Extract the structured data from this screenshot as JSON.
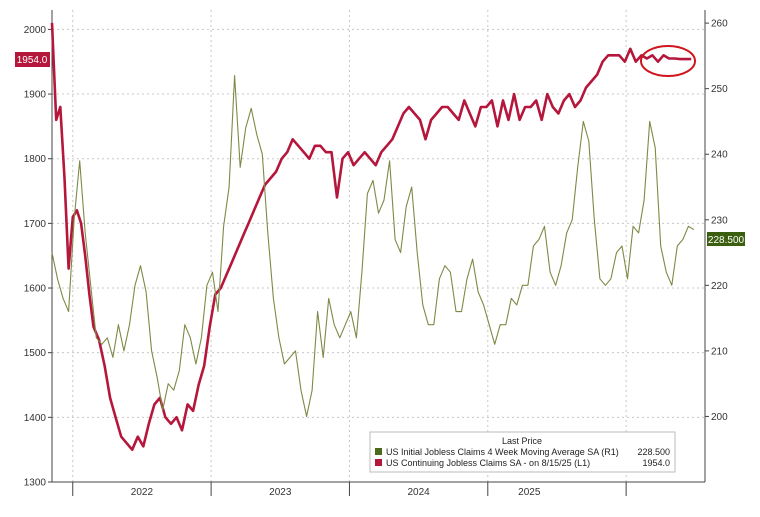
{
  "chart_data": {
    "type": "line",
    "x_labels": [
      "2022",
      "2023",
      "2024",
      "2025"
    ],
    "left_axis": {
      "ylim": [
        1300,
        2030
      ],
      "ticks": [
        1300,
        1400,
        1500,
        1600,
        1700,
        1800,
        1900,
        2000
      ]
    },
    "right_axis": {
      "ylim": [
        190,
        262
      ],
      "ticks": [
        200,
        210,
        220,
        230,
        240,
        250,
        260
      ]
    },
    "legend": {
      "title": "Last Price",
      "items": [
        {
          "label": "US Initial Jobless Claims 4 Week Moving Average SA  (R1)",
          "value": "228.500",
          "color": "#4a6a1a"
        },
        {
          "label": "US Continuing Jobless Claims SA -  on 8/15/25  (L1)",
          "value": "1954.0",
          "color": "#b5163b"
        }
      ]
    },
    "tags": {
      "left": "1954.0",
      "right": "228.500"
    },
    "series": [
      {
        "axis": "left",
        "color": "#b5163b",
        "x": [
          2021.0,
          2021.03,
          2021.06,
          2021.09,
          2021.12,
          2021.15,
          2021.18,
          2021.21,
          2021.24,
          2021.27,
          2021.3,
          2021.34,
          2021.38,
          2021.42,
          2021.46,
          2021.5,
          2021.54,
          2021.58,
          2021.62,
          2021.66,
          2021.7,
          2021.74,
          2021.78,
          2021.82,
          2021.86,
          2021.9,
          2021.94,
          2021.98,
          2022.02,
          2022.06,
          2022.1,
          2022.14,
          2022.18,
          2022.22,
          2022.26,
          2022.3,
          2022.34,
          2022.38,
          2022.42,
          2022.46,
          2022.5,
          2022.54,
          2022.58,
          2022.62,
          2022.66,
          2022.7,
          2022.74,
          2022.78,
          2022.82,
          2022.86,
          2022.9,
          2022.94,
          2022.98,
          2023.02,
          2023.06,
          2023.1,
          2023.14,
          2023.18,
          2023.22,
          2023.26,
          2023.3,
          2023.34,
          2023.38,
          2023.42,
          2023.46,
          2023.5,
          2023.54,
          2023.58,
          2023.62,
          2023.66,
          2023.7,
          2023.74,
          2023.78,
          2023.82,
          2023.86,
          2023.9,
          2023.94,
          2023.98,
          2024.02,
          2024.06,
          2024.1,
          2024.14,
          2024.18,
          2024.22,
          2024.26,
          2024.3,
          2024.34,
          2024.38,
          2024.42,
          2024.46,
          2024.5,
          2024.54,
          2024.58,
          2024.62,
          2024.66,
          2024.7,
          2024.74,
          2024.78,
          2024.82,
          2024.86,
          2024.9,
          2024.94,
          2024.98,
          2025.02,
          2025.06,
          2025.1,
          2025.14,
          2025.18,
          2025.22,
          2025.26,
          2025.3,
          2025.34,
          2025.38,
          2025.42,
          2025.46,
          2025.5,
          2025.54,
          2025.58,
          2025.62
        ],
        "values": [
          2010,
          1860,
          1880,
          1770,
          1630,
          1710,
          1720,
          1700,
          1650,
          1590,
          1540,
          1520,
          1480,
          1430,
          1400,
          1370,
          1360,
          1350,
          1370,
          1355,
          1390,
          1420,
          1430,
          1400,
          1390,
          1400,
          1380,
          1420,
          1410,
          1450,
          1480,
          1540,
          1590,
          1600,
          1620,
          1640,
          1660,
          1680,
          1700,
          1720,
          1740,
          1760,
          1770,
          1780,
          1800,
          1810,
          1830,
          1820,
          1810,
          1800,
          1820,
          1820,
          1810,
          1810,
          1740,
          1800,
          1810,
          1790,
          1800,
          1810,
          1800,
          1790,
          1810,
          1820,
          1830,
          1850,
          1870,
          1880,
          1870,
          1860,
          1830,
          1860,
          1870,
          1880,
          1880,
          1870,
          1860,
          1890,
          1870,
          1850,
          1880,
          1880,
          1890,
          1850,
          1890,
          1860,
          1900,
          1860,
          1880,
          1880,
          1890,
          1860,
          1900,
          1880,
          1870,
          1890,
          1900,
          1880,
          1890,
          1910,
          1920,
          1930,
          1950,
          1960,
          1960,
          1960,
          1950,
          1970,
          1950,
          1960,
          1955,
          1960,
          1950,
          1960,
          1955,
          1955,
          1954,
          1954,
          1954
        ]
      },
      {
        "axis": "right",
        "color": "#7d8a45",
        "x": [
          2021.0,
          2021.04,
          2021.08,
          2021.12,
          2021.16,
          2021.2,
          2021.24,
          2021.28,
          2021.32,
          2021.36,
          2021.4,
          2021.44,
          2021.48,
          2021.52,
          2021.56,
          2021.6,
          2021.64,
          2021.68,
          2021.72,
          2021.76,
          2021.8,
          2021.84,
          2021.88,
          2021.92,
          2021.96,
          2022.0,
          2022.04,
          2022.08,
          2022.12,
          2022.16,
          2022.2,
          2022.24,
          2022.28,
          2022.32,
          2022.36,
          2022.4,
          2022.44,
          2022.48,
          2022.52,
          2022.56,
          2022.6,
          2022.64,
          2022.68,
          2022.72,
          2022.76,
          2022.8,
          2022.84,
          2022.88,
          2022.92,
          2022.96,
          2023.0,
          2023.04,
          2023.08,
          2023.12,
          2023.16,
          2023.2,
          2023.24,
          2023.28,
          2023.32,
          2023.36,
          2023.4,
          2023.44,
          2023.48,
          2023.52,
          2023.56,
          2023.6,
          2023.64,
          2023.68,
          2023.72,
          2023.76,
          2023.8,
          2023.84,
          2023.88,
          2023.92,
          2023.96,
          2024.0,
          2024.04,
          2024.08,
          2024.12,
          2024.16,
          2024.2,
          2024.24,
          2024.28,
          2024.32,
          2024.36,
          2024.4,
          2024.44,
          2024.48,
          2024.52,
          2024.56,
          2024.6,
          2024.64,
          2024.68,
          2024.72,
          2024.76,
          2024.8,
          2024.84,
          2024.88,
          2024.92,
          2024.96,
          2025.0,
          2025.04,
          2025.08,
          2025.12,
          2025.16,
          2025.2,
          2025.24,
          2025.28,
          2025.32,
          2025.36,
          2025.4,
          2025.44,
          2025.48,
          2025.52,
          2025.56,
          2025.6,
          2025.64
        ],
        "values": [
          225,
          221,
          218,
          216,
          230,
          239,
          228,
          220,
          212,
          211,
          212,
          209,
          214,
          210,
          214,
          220,
          223,
          219,
          210,
          206,
          201,
          205,
          204,
          207,
          214,
          212,
          208,
          212,
          220,
          222,
          216,
          229,
          235,
          252,
          238,
          244,
          247,
          243,
          240,
          228,
          218,
          212,
          208,
          209,
          210,
          204,
          200,
          204,
          216,
          209,
          218,
          214,
          212,
          214,
          216,
          212,
          222,
          234,
          236,
          231,
          233,
          239,
          227,
          225,
          232,
          235,
          225,
          217,
          214,
          214,
          221,
          223,
          222,
          216,
          216,
          221,
          224,
          219,
          217,
          214,
          211,
          214,
          214,
          218,
          217,
          220,
          220,
          226,
          227,
          229,
          222,
          220,
          223,
          228,
          230,
          238,
          245,
          242,
          230,
          221,
          220,
          221,
          225,
          226,
          221,
          229,
          228,
          233,
          245,
          241,
          226,
          222,
          220,
          226,
          227,
          229,
          228.5
        ]
      }
    ]
  }
}
